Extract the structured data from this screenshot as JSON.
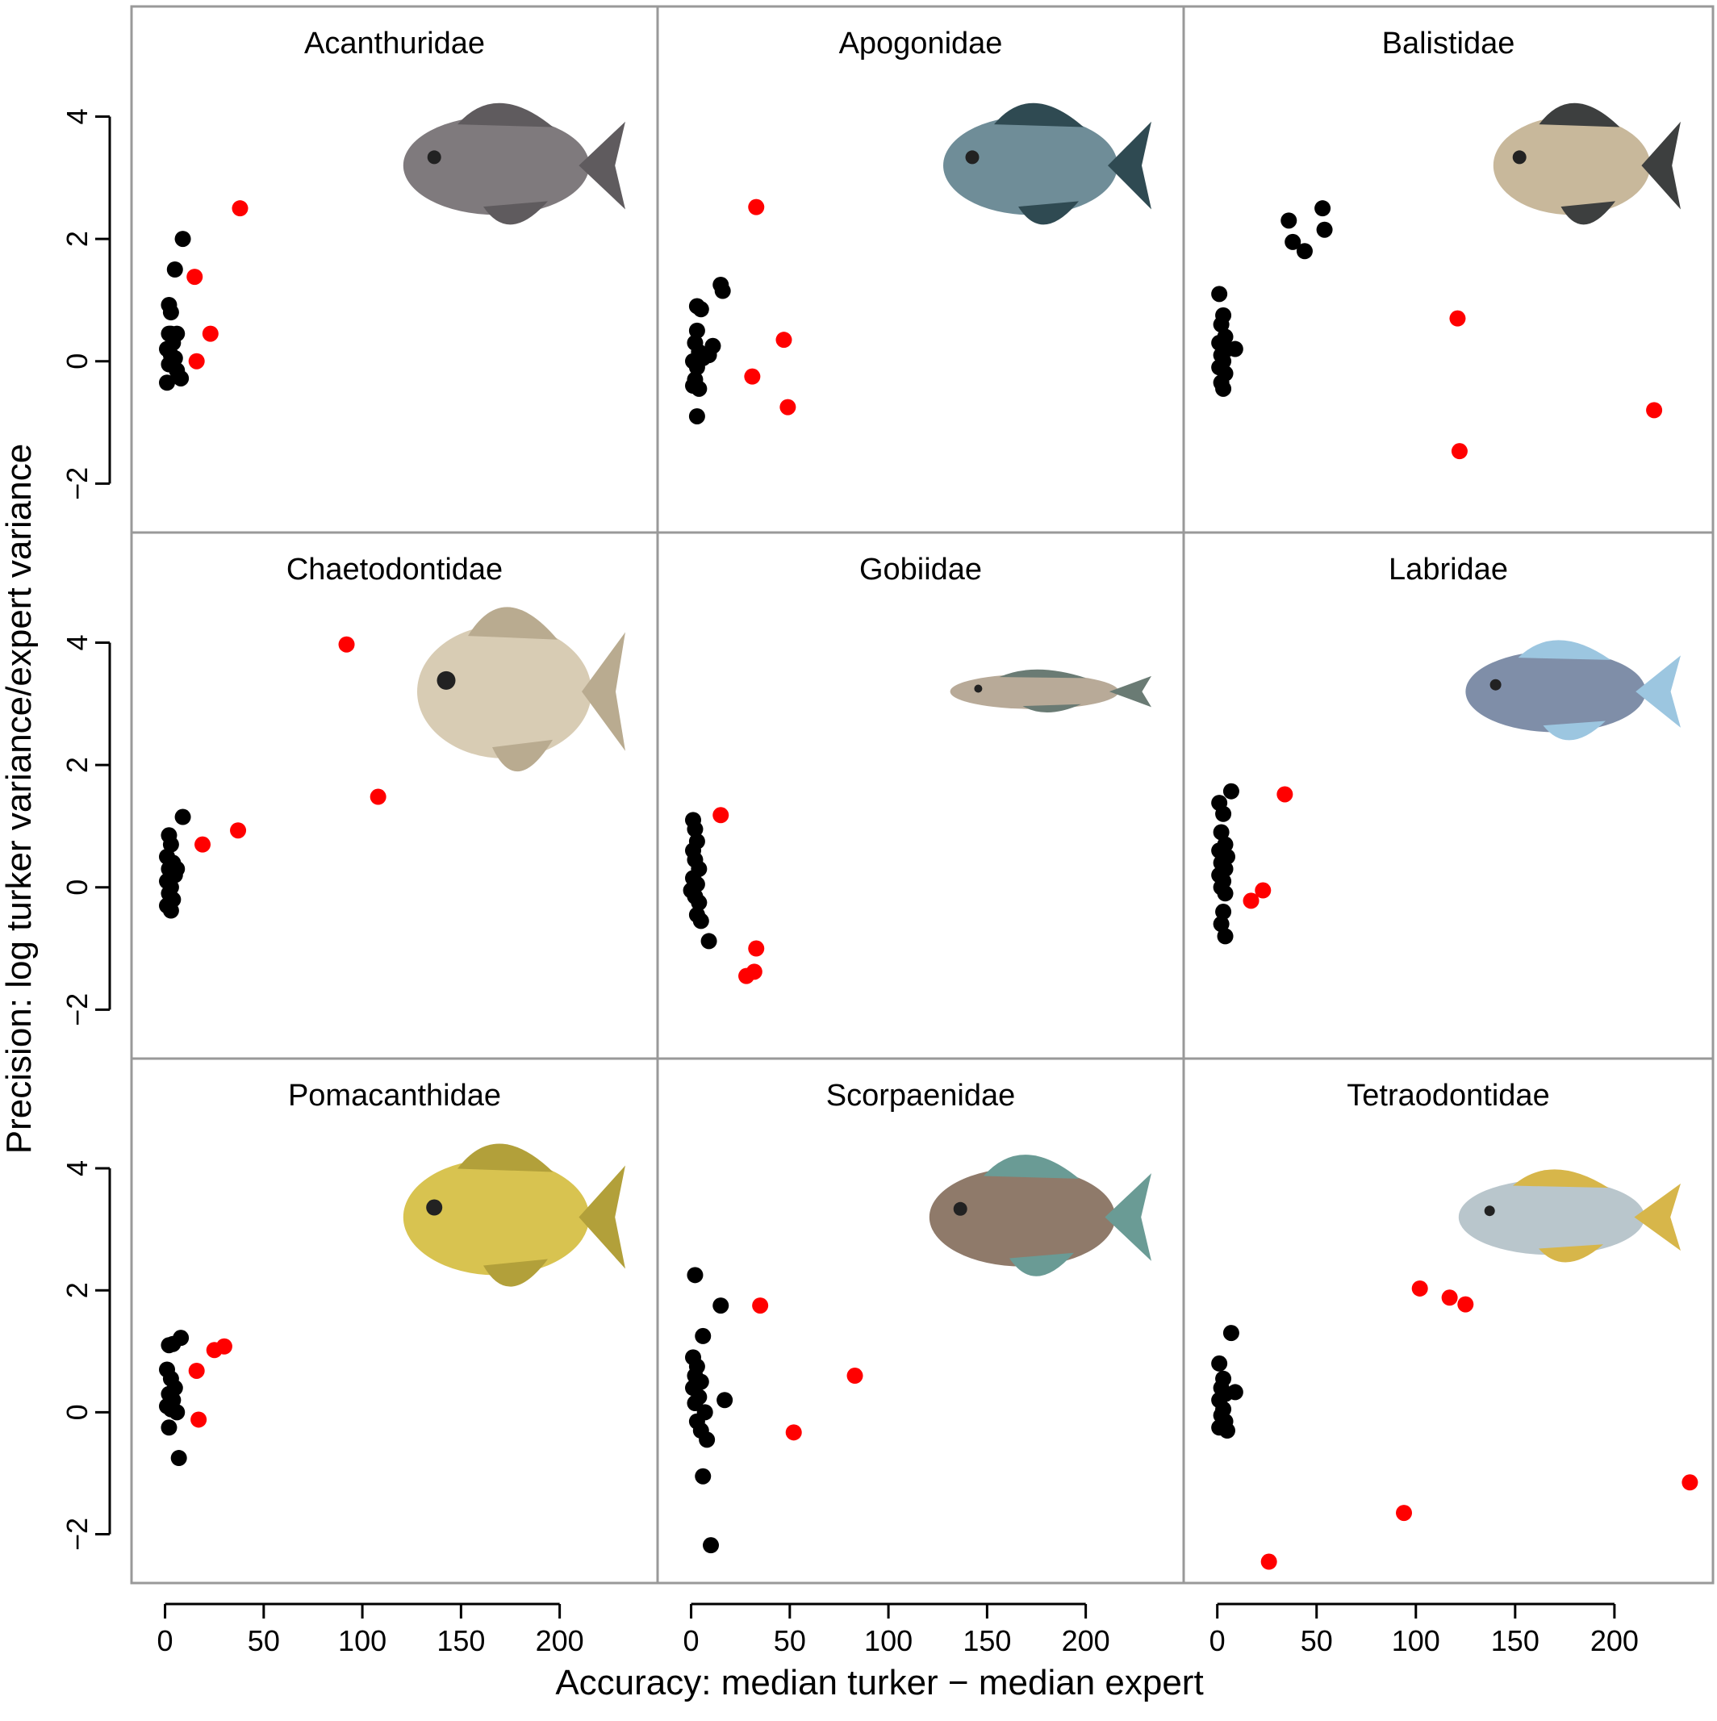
{
  "chart_data": {
    "type": "scatter",
    "layout": "3x3 small multiples",
    "xlabel": "Accuracy: median turker − median expert",
    "ylabel": "Precision: log turker variance/expert variance",
    "xlim": [
      -8,
      248
    ],
    "ylim": [
      -2.8,
      5.8
    ],
    "x_ticks": [
      0,
      50,
      100,
      150,
      200
    ],
    "y_ticks": [
      -2,
      0,
      2,
      4
    ],
    "grid": false,
    "colors": {
      "black_points": "#000000",
      "red_points": "#ff0000",
      "panel_border": "#999999"
    },
    "panels": [
      {
        "title": "Acanthuridae",
        "image": "fish-photo",
        "black": [
          [
            2,
            0.45
          ],
          [
            4,
            0.3
          ],
          [
            1,
            0.2
          ],
          [
            3,
            0.1
          ],
          [
            5,
            0.05
          ],
          [
            2,
            -0.05
          ],
          [
            6,
            -0.15
          ],
          [
            1,
            -0.35
          ],
          [
            8,
            -0.28
          ],
          [
            3,
            0.8
          ],
          [
            2,
            0.92
          ],
          [
            5,
            1.5
          ],
          [
            9,
            2.0
          ],
          [
            6,
            0.45
          ],
          [
            3,
            0.45
          ]
        ],
        "red": [
          [
            38,
            2.5
          ],
          [
            15,
            1.38
          ],
          [
            23,
            0.45
          ],
          [
            16,
            0.0
          ]
        ]
      },
      {
        "title": "Apogonidae",
        "image": "fish-photo",
        "black": [
          [
            3,
            0.5
          ],
          [
            2,
            0.3
          ],
          [
            4,
            0.15
          ],
          [
            6,
            0.05
          ],
          [
            1,
            0.0
          ],
          [
            3,
            -0.1
          ],
          [
            2,
            -0.3
          ],
          [
            4,
            -0.45
          ],
          [
            1,
            -0.4
          ],
          [
            11,
            0.25
          ],
          [
            9,
            0.1
          ],
          [
            5,
            0.85
          ],
          [
            3,
            0.9
          ],
          [
            15,
            1.25
          ],
          [
            16,
            1.15
          ],
          [
            3,
            -0.9
          ]
        ],
        "red": [
          [
            33,
            2.52
          ],
          [
            47,
            0.35
          ],
          [
            31,
            -0.25
          ],
          [
            49,
            -0.75
          ]
        ]
      },
      {
        "title": "Balistidae",
        "image": "fish-photo",
        "black": [
          [
            1,
            1.1
          ],
          [
            3,
            0.75
          ],
          [
            2,
            0.6
          ],
          [
            4,
            0.4
          ],
          [
            1,
            0.3
          ],
          [
            5,
            0.2
          ],
          [
            2,
            0.1
          ],
          [
            3,
            0.0
          ],
          [
            1,
            -0.1
          ],
          [
            4,
            -0.2
          ],
          [
            2,
            -0.35
          ],
          [
            3,
            -0.45
          ],
          [
            9,
            0.2
          ],
          [
            36,
            2.3
          ],
          [
            38,
            1.95
          ],
          [
            44,
            1.8
          ],
          [
            53,
            2.5
          ],
          [
            54,
            2.15
          ]
        ],
        "red": [
          [
            121,
            0.7
          ],
          [
            122,
            -1.47
          ],
          [
            220,
            -0.8
          ]
        ]
      },
      {
        "title": "Chaetodontidae",
        "image": "fish-photo",
        "black": [
          [
            2,
            0.85
          ],
          [
            3,
            0.7
          ],
          [
            1,
            0.5
          ],
          [
            4,
            0.4
          ],
          [
            2,
            0.3
          ],
          [
            5,
            0.2
          ],
          [
            1,
            0.1
          ],
          [
            3,
            0.0
          ],
          [
            2,
            -0.1
          ],
          [
            4,
            -0.2
          ],
          [
            1,
            -0.3
          ],
          [
            3,
            -0.38
          ],
          [
            9,
            1.15
          ],
          [
            6,
            0.3
          ]
        ],
        "red": [
          [
            92,
            3.97
          ],
          [
            108,
            1.48
          ],
          [
            37,
            0.93
          ],
          [
            19,
            0.7
          ]
        ]
      },
      {
        "title": "Gobiidae",
        "image": "fish-photo",
        "black": [
          [
            1,
            1.1
          ],
          [
            2,
            0.95
          ],
          [
            3,
            0.75
          ],
          [
            1,
            0.6
          ],
          [
            2,
            0.45
          ],
          [
            4,
            0.3
          ],
          [
            1,
            0.15
          ],
          [
            3,
            0.05
          ],
          [
            0,
            -0.05
          ],
          [
            2,
            -0.15
          ],
          [
            4,
            -0.25
          ],
          [
            3,
            -0.45
          ],
          [
            5,
            -0.55
          ],
          [
            9,
            -0.88
          ]
        ],
        "red": [
          [
            15,
            1.18
          ],
          [
            33,
            -1.0
          ],
          [
            32,
            -1.38
          ],
          [
            28,
            -1.45
          ]
        ]
      },
      {
        "title": "Labridae",
        "image": "fish-photo",
        "black": [
          [
            1,
            1.38
          ],
          [
            3,
            1.2
          ],
          [
            7,
            1.57
          ],
          [
            2,
            0.9
          ],
          [
            4,
            0.7
          ],
          [
            1,
            0.6
          ],
          [
            5,
            0.5
          ],
          [
            2,
            0.4
          ],
          [
            4,
            0.3
          ],
          [
            1,
            0.2
          ],
          [
            3,
            0.1
          ],
          [
            2,
            0.0
          ],
          [
            4,
            -0.1
          ],
          [
            3,
            -0.4
          ],
          [
            2,
            -0.6
          ],
          [
            4,
            -0.8
          ]
        ],
        "red": [
          [
            34,
            1.52
          ],
          [
            23,
            -0.05
          ],
          [
            17,
            -0.22
          ]
        ]
      },
      {
        "title": "Pomacanthidae",
        "image": "fish-photo",
        "black": [
          [
            2,
            1.1
          ],
          [
            8,
            1.22
          ],
          [
            4,
            1.12
          ],
          [
            1,
            0.7
          ],
          [
            3,
            0.55
          ],
          [
            5,
            0.4
          ],
          [
            2,
            0.3
          ],
          [
            4,
            0.2
          ],
          [
            1,
            0.1
          ],
          [
            3,
            0.05
          ],
          [
            6,
            0.0
          ],
          [
            2,
            -0.25
          ],
          [
            7,
            -0.75
          ]
        ],
        "red": [
          [
            30,
            1.08
          ],
          [
            25,
            1.02
          ],
          [
            16,
            0.68
          ],
          [
            17,
            -0.12
          ]
        ]
      },
      {
        "title": "Scorpaenidae",
        "image": "fish-photo",
        "black": [
          [
            2,
            2.25
          ],
          [
            15,
            1.75
          ],
          [
            6,
            1.25
          ],
          [
            1,
            0.9
          ],
          [
            3,
            0.75
          ],
          [
            2,
            0.6
          ],
          [
            5,
            0.5
          ],
          [
            1,
            0.4
          ],
          [
            4,
            0.25
          ],
          [
            2,
            0.15
          ],
          [
            7,
            0.0
          ],
          [
            3,
            -0.15
          ],
          [
            5,
            -0.3
          ],
          [
            8,
            -0.45
          ],
          [
            17,
            0.2
          ],
          [
            6,
            -1.05
          ],
          [
            10,
            -2.18
          ]
        ],
        "red": [
          [
            35,
            1.75
          ],
          [
            83,
            0.6
          ],
          [
            52,
            -0.33
          ]
        ]
      },
      {
        "title": "Tetraodontidae",
        "image": "fish-photo",
        "black": [
          [
            1,
            0.8
          ],
          [
            3,
            0.55
          ],
          [
            2,
            0.4
          ],
          [
            4,
            0.3
          ],
          [
            1,
            0.2
          ],
          [
            3,
            0.05
          ],
          [
            2,
            -0.05
          ],
          [
            4,
            -0.15
          ],
          [
            1,
            -0.25
          ],
          [
            5,
            -0.3
          ],
          [
            9,
            0.33
          ],
          [
            7,
            1.3
          ]
        ],
        "red": [
          [
            102,
            2.03
          ],
          [
            117,
            1.88
          ],
          [
            125,
            1.77
          ],
          [
            94,
            -1.65
          ],
          [
            26,
            -2.45
          ],
          [
            238,
            -1.15
          ]
        ]
      }
    ]
  }
}
